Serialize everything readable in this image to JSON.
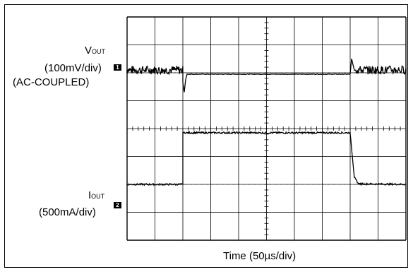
{
  "chart_data": {
    "type": "line",
    "title": "",
    "xlabel": "Time (50µs/div)",
    "x_divisions": 10,
    "y_divisions": 8,
    "grid": true,
    "x_unit": "div",
    "x_range": [
      0,
      10
    ],
    "channels": [
      {
        "name": "VOUT",
        "marker": "1",
        "label_main": "V",
        "label_sub": "OUT",
        "scale_label": "(100mV/div)",
        "coupling_label": "(AC-COUPLED)",
        "ground_div": 6,
        "x": [
          0,
          2.0,
          2.0,
          2.05,
          2.1,
          2.15,
          2.25,
          8.0,
          8.05,
          8.15,
          8.3,
          10
        ],
        "y": [
          0.1,
          0.1,
          -0.35,
          -0.7,
          -0.25,
          -0.05,
          -0.05,
          -0.05,
          0.5,
          0.1,
          0.1,
          0.1
        ],
        "ripple_regions": [
          [
            0,
            2.0
          ],
          [
            8.2,
            10
          ]
        ]
      },
      {
        "name": "IOUT",
        "marker": "2",
        "label_main": "I",
        "label_sub": "OUT",
        "scale_label": "(500mA/div)",
        "ground_div": 2,
        "x": [
          0,
          2.0,
          2.0,
          8.0,
          8.15,
          8.3,
          10
        ],
        "y": [
          0,
          0,
          1.85,
          1.85,
          0.25,
          0.02,
          0
        ],
        "noise_div": 0.06
      }
    ]
  }
}
